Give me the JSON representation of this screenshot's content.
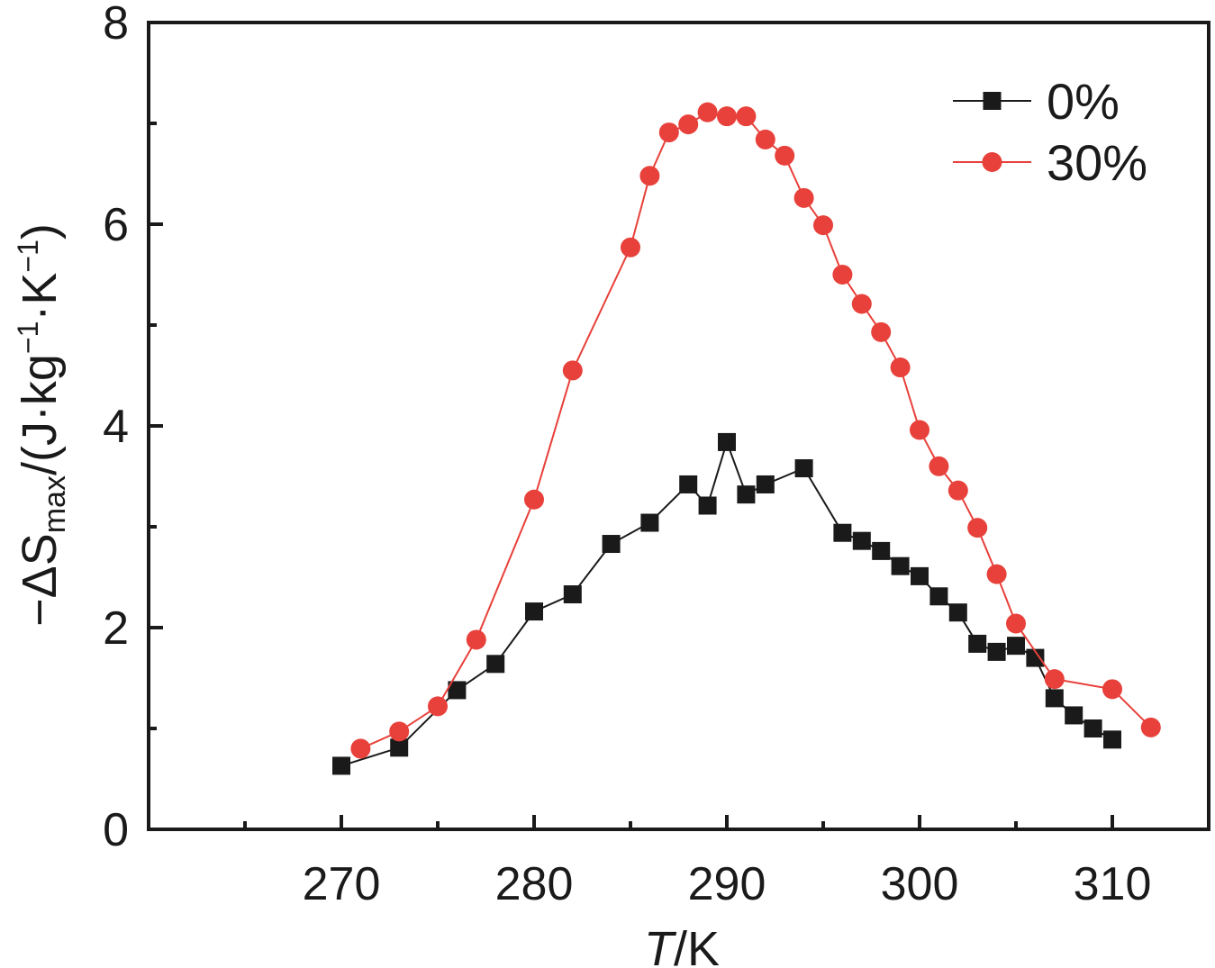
{
  "chart_data": {
    "type": "line",
    "xlabel_italic": "T",
    "xlabel_rest": "/K",
    "ylabel": {
      "prefix": "−ΔS",
      "sub": "max",
      "mid1": "/(J·kg",
      "sup1": "−1",
      "mid2": "·K",
      "sup2": "−1",
      "suffix": ")"
    },
    "xlim": [
      260,
      315
    ],
    "ylim": [
      0,
      8
    ],
    "xticks": [
      270,
      280,
      290,
      300,
      310
    ],
    "xticks_minor": [
      265,
      275,
      285,
      295,
      305
    ],
    "yticks": [
      0,
      2,
      4,
      6,
      8
    ],
    "yticks_minor": [
      1,
      3,
      5,
      7
    ],
    "legend_position": "top-right",
    "grid": false,
    "series": [
      {
        "name": "0%",
        "color": "#1a1a1a",
        "marker": "square",
        "x": [
          270,
          273,
          276,
          278,
          280,
          282,
          284,
          286,
          288,
          289,
          290,
          291,
          292,
          294,
          296,
          297,
          298,
          299,
          300,
          301,
          302,
          303,
          304,
          305,
          306,
          307,
          308,
          309,
          310
        ],
        "y": [
          0.63,
          0.81,
          1.38,
          1.64,
          2.16,
          2.33,
          2.83,
          3.04,
          3.42,
          3.21,
          3.84,
          3.32,
          3.42,
          3.58,
          2.94,
          2.86,
          2.76,
          2.61,
          2.51,
          2.31,
          2.15,
          1.84,
          1.76,
          1.82,
          1.7,
          1.3,
          1.13,
          1.0,
          0.89
        ]
      },
      {
        "name": "30%",
        "color": "#e8403a",
        "marker": "circle",
        "x": [
          271,
          273,
          275,
          277,
          280,
          282,
          285,
          286,
          287,
          288,
          289,
          290,
          291,
          292,
          293,
          294,
          295,
          296,
          297,
          298,
          299,
          300,
          301,
          302,
          303,
          304,
          305,
          307,
          310,
          312
        ],
        "y": [
          0.8,
          0.97,
          1.22,
          1.88,
          3.27,
          4.55,
          5.77,
          6.48,
          6.91,
          6.99,
          7.11,
          7.07,
          7.07,
          6.84,
          6.68,
          6.26,
          5.99,
          5.5,
          5.21,
          4.93,
          4.58,
          3.96,
          3.6,
          3.36,
          2.99,
          2.53,
          2.04,
          1.49,
          1.39,
          1.01
        ]
      }
    ]
  }
}
